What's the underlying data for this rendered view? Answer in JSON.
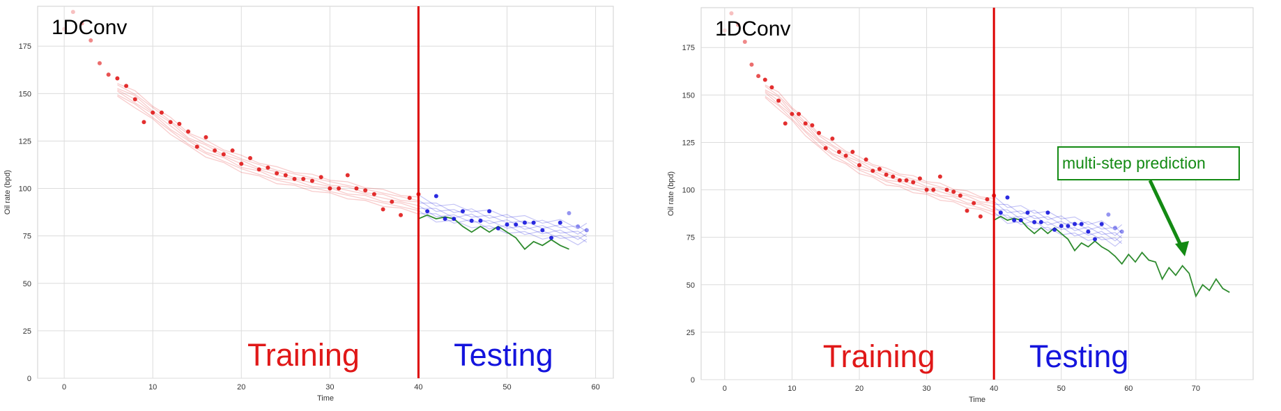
{
  "figure": {
    "panels": [
      {
        "model_label": "1DConv",
        "training_label": "Training",
        "testing_label": "Testing",
        "annotation": ""
      },
      {
        "model_label": "1DConv",
        "training_label": "Training",
        "testing_label": "Testing",
        "annotation": "multi-step prediction"
      }
    ]
  },
  "colors": {
    "training": "#e01818",
    "testing": "#1414dd",
    "prediction": "#2e8b2e",
    "split_line": "#dd0000",
    "annotation": "#138a13"
  },
  "chart_data": [
    {
      "type": "scatter",
      "xlabel": "Time",
      "ylabel": "Oil rate (bpd)",
      "xlim": [
        -3,
        62
      ],
      "ylim": [
        0,
        196
      ],
      "xticks": [
        0,
        10,
        20,
        30,
        40,
        50,
        60
      ],
      "yticks": [
        0,
        25,
        50,
        75,
        100,
        125,
        150,
        175
      ],
      "grid": true,
      "split_x": 40,
      "series": [
        {
          "role": "observed_training",
          "x": [
            0,
            1,
            2,
            3,
            4,
            5,
            6,
            7,
            8,
            9,
            10,
            11,
            12,
            13,
            14,
            15,
            16,
            17,
            18,
            19,
            20,
            21,
            22,
            23,
            24,
            25,
            26,
            27,
            28,
            29,
            30,
            31,
            32,
            33,
            34,
            35,
            36,
            37,
            38,
            39,
            40
          ],
          "y": [
            184,
            193,
            187,
            178,
            166,
            160,
            158,
            154,
            147,
            135,
            140,
            140,
            135,
            134,
            130,
            122,
            127,
            120,
            118,
            120,
            113,
            116,
            110,
            111,
            108,
            107,
            105,
            105,
            104,
            106,
            100,
            100,
            107,
            100,
            99,
            97,
            89,
            93,
            86,
            95,
            97
          ]
        },
        {
          "role": "observed_testing",
          "x": [
            41,
            42,
            43,
            44,
            45,
            46,
            47,
            48,
            49,
            50,
            51,
            52,
            53,
            54,
            55,
            56,
            57,
            58,
            59
          ],
          "y": [
            88,
            96,
            84,
            84,
            88,
            83,
            83,
            88,
            79,
            81,
            81,
            82,
            82,
            78,
            74,
            82,
            87,
            80,
            78
          ]
        },
        {
          "role": "fitted_training",
          "x": [
            6,
            8,
            10,
            12,
            14,
            16,
            18,
            20,
            22,
            24,
            26,
            28,
            30,
            32,
            34,
            36,
            38,
            40
          ],
          "y": [
            152,
            147,
            140,
            133,
            126,
            121,
            117,
            113,
            110,
            107,
            105,
            103,
            101,
            99,
            97,
            95,
            93,
            91
          ]
        },
        {
          "role": "fitted_testing",
          "x": [
            40,
            42,
            44,
            46,
            48,
            50,
            52,
            54,
            56,
            58,
            59
          ],
          "y": [
            91,
            88,
            86,
            85,
            83,
            82,
            80,
            79,
            78,
            76,
            76
          ]
        },
        {
          "role": "multi_step_prediction",
          "x": [
            40,
            41,
            42,
            43,
            44,
            45,
            46,
            47,
            48,
            49,
            50,
            51,
            52,
            53,
            54,
            55,
            56,
            57
          ],
          "y": [
            84,
            86,
            84,
            85,
            84,
            80,
            77,
            80,
            77,
            80,
            77,
            74,
            68,
            72,
            70,
            73,
            70,
            68
          ]
        }
      ]
    },
    {
      "type": "scatter",
      "xlabel": "Time",
      "ylabel": "Oil rate (bpd)",
      "xlim": [
        -3.5,
        78.5
      ],
      "ylim": [
        0,
        196
      ],
      "xticks": [
        0,
        10,
        20,
        30,
        40,
        50,
        60,
        70
      ],
      "yticks": [
        0,
        25,
        50,
        75,
        100,
        125,
        150,
        175
      ],
      "grid": true,
      "split_x": 40,
      "series": [
        {
          "role": "observed_training",
          "x": [
            0,
            1,
            2,
            3,
            4,
            5,
            6,
            7,
            8,
            9,
            10,
            11,
            12,
            13,
            14,
            15,
            16,
            17,
            18,
            19,
            20,
            21,
            22,
            23,
            24,
            25,
            26,
            27,
            28,
            29,
            30,
            31,
            32,
            33,
            34,
            35,
            36,
            37,
            38,
            39,
            40
          ],
          "y": [
            184,
            193,
            187,
            178,
            166,
            160,
            158,
            154,
            147,
            135,
            140,
            140,
            135,
            134,
            130,
            122,
            127,
            120,
            118,
            120,
            113,
            116,
            110,
            111,
            108,
            107,
            105,
            105,
            104,
            106,
            100,
            100,
            107,
            100,
            99,
            97,
            89,
            93,
            86,
            95,
            97
          ]
        },
        {
          "role": "observed_testing",
          "x": [
            41,
            42,
            43,
            44,
            45,
            46,
            47,
            48,
            49,
            50,
            51,
            52,
            53,
            54,
            55,
            56,
            57,
            58,
            59
          ],
          "y": [
            88,
            96,
            84,
            84,
            88,
            83,
            83,
            88,
            79,
            81,
            81,
            82,
            82,
            78,
            74,
            82,
            87,
            80,
            78
          ]
        },
        {
          "role": "fitted_training",
          "x": [
            6,
            8,
            10,
            12,
            14,
            16,
            18,
            20,
            22,
            24,
            26,
            28,
            30,
            32,
            34,
            36,
            38,
            40
          ],
          "y": [
            152,
            147,
            140,
            133,
            126,
            121,
            117,
            113,
            110,
            107,
            105,
            103,
            101,
            99,
            97,
            95,
            93,
            91
          ]
        },
        {
          "role": "fitted_testing",
          "x": [
            40,
            42,
            44,
            46,
            48,
            50,
            52,
            54,
            56,
            58,
            59
          ],
          "y": [
            91,
            88,
            86,
            85,
            83,
            82,
            80,
            79,
            78,
            76,
            76
          ]
        },
        {
          "role": "multi_step_prediction",
          "x": [
            40,
            41,
            42,
            43,
            44,
            45,
            46,
            47,
            48,
            49,
            50,
            51,
            52,
            53,
            54,
            55,
            56,
            57,
            58,
            59,
            60,
            61,
            62,
            63,
            64,
            65,
            66,
            67,
            68,
            69,
            70,
            71,
            72,
            73,
            74,
            75
          ],
          "y": [
            84,
            86,
            84,
            85,
            84,
            80,
            77,
            80,
            77,
            80,
            77,
            74,
            68,
            72,
            70,
            73,
            70,
            68,
            65,
            61,
            66,
            62,
            67,
            63,
            62,
            53,
            59,
            55,
            60,
            56,
            44,
            50,
            47,
            53,
            48,
            46
          ]
        }
      ]
    }
  ]
}
